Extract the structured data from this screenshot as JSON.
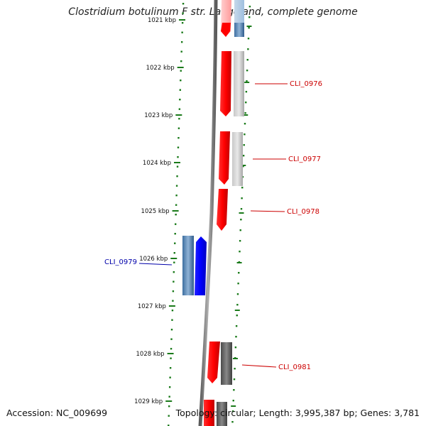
{
  "title": "Clostridium botulinum F str. Langeland, complete genome",
  "footer": {
    "accession": "Accession: NC_009699",
    "topology": "Topology: circular; Length: 3,995,387 bp; Genes: 3,781"
  },
  "ticks": [
    {
      "label": "1021 kbp"
    },
    {
      "label": "1022 kbp"
    },
    {
      "label": "1023 kbp"
    },
    {
      "label": "1024 kbp"
    },
    {
      "label": "1025 kbp"
    },
    {
      "label": "1026 kbp"
    },
    {
      "label": "1027 kbp"
    },
    {
      "label": "1028 kbp"
    },
    {
      "label": "1029 kbp"
    }
  ],
  "genes": [
    {
      "label": "CLI_0976",
      "strand": "+",
      "color": "#cc0000"
    },
    {
      "label": "CLI_0977",
      "strand": "+",
      "color": "#cc0000"
    },
    {
      "label": "CLI_0978",
      "strand": "+",
      "color": "#cc0000"
    },
    {
      "label": "CLI_0979",
      "strand": "-",
      "color": "#0000aa"
    },
    {
      "label": "CLI_0981",
      "strand": "+",
      "color": "#cc0000"
    }
  ],
  "colors": {
    "forward_cds": "#ff0000",
    "reverse_cds": "#0000ff",
    "tick": "#1a7a1a",
    "backbone": "#7a7a7a"
  }
}
